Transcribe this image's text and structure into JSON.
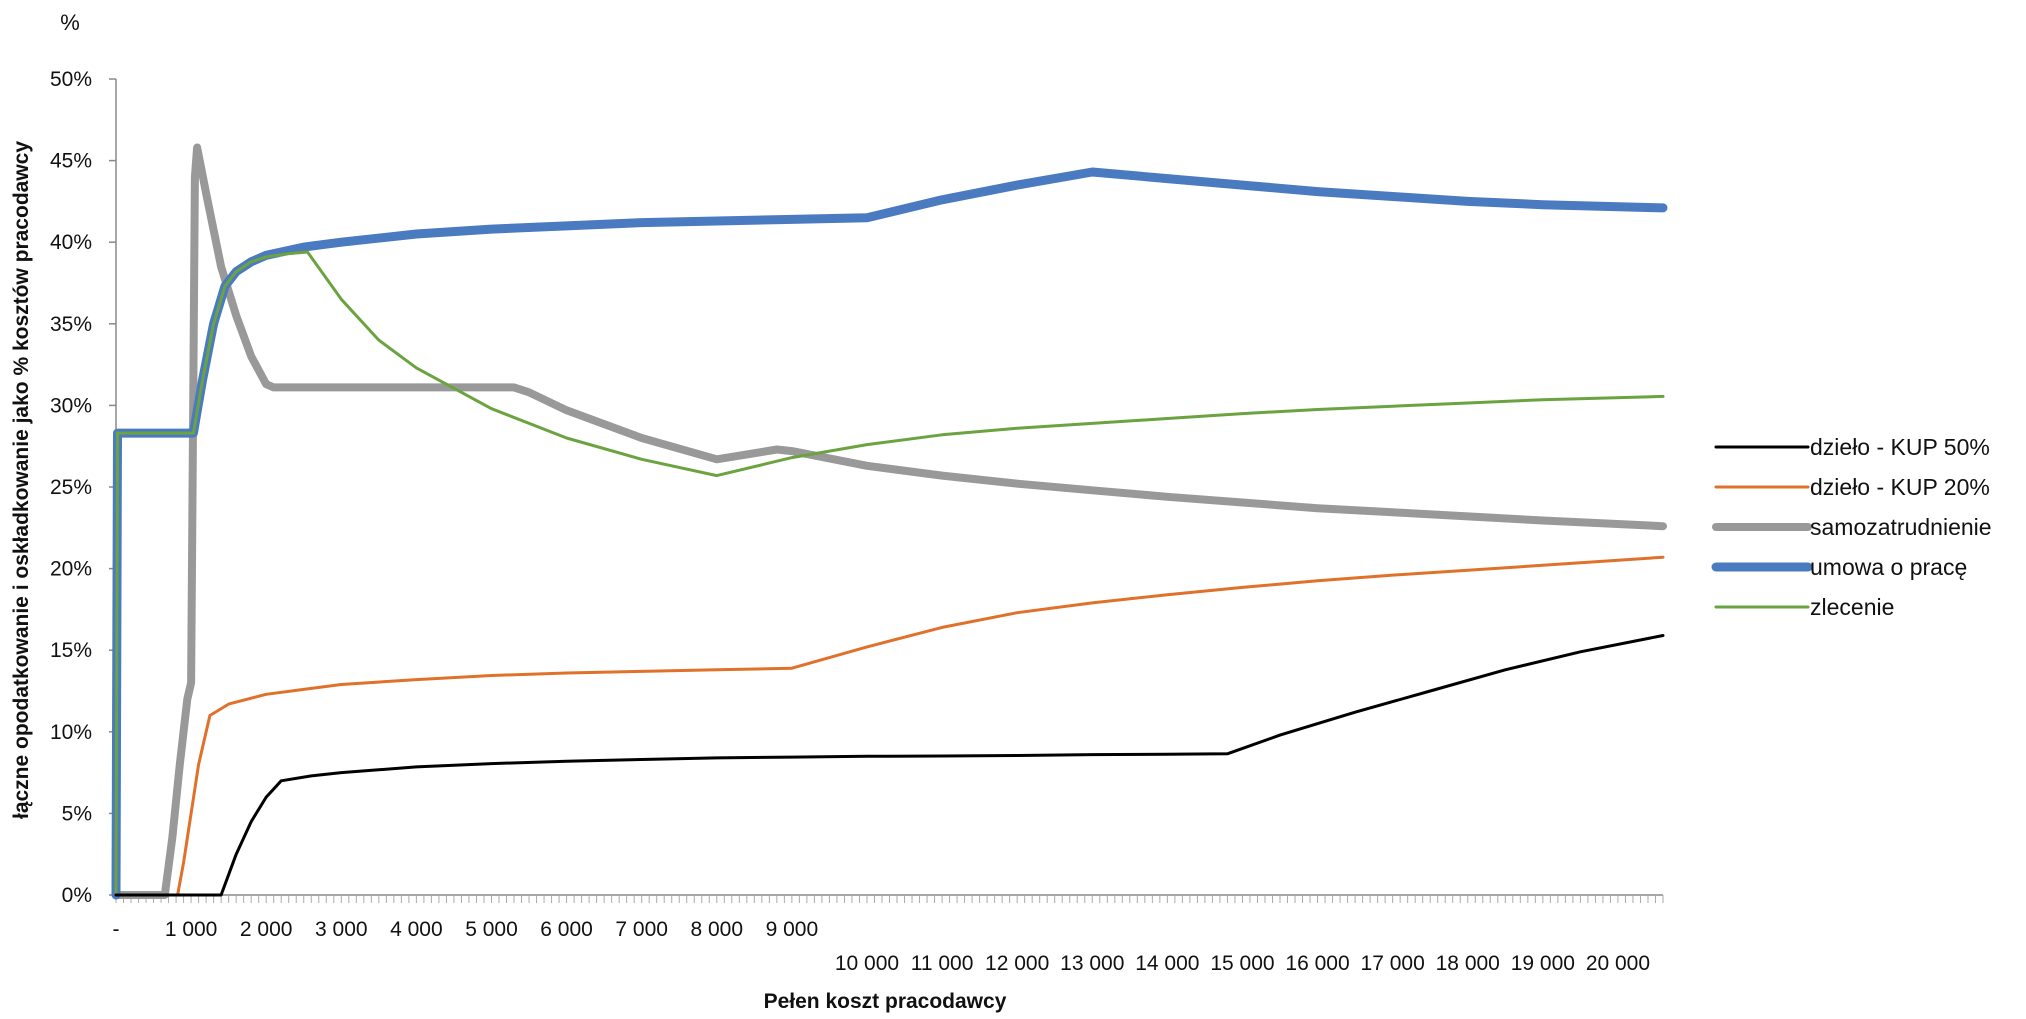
{
  "chart_data": {
    "type": "line",
    "unit_label": "%",
    "xlabel": "Pełen koszt pracodawcy",
    "ylabel": "łączne opodatkowanie i oskładkowanie jako % kosztów pracodawcy",
    "xlim": [
      0,
      20600
    ],
    "ylim": [
      0,
      50
    ],
    "y_ticks": [
      {
        "value": 0,
        "label": "0%"
      },
      {
        "value": 5,
        "label": "5%"
      },
      {
        "value": 10,
        "label": "10%"
      },
      {
        "value": 15,
        "label": "15%"
      },
      {
        "value": 20,
        "label": "20%"
      },
      {
        "value": 25,
        "label": "25%"
      },
      {
        "value": 30,
        "label": "30%"
      },
      {
        "value": 35,
        "label": "35%"
      },
      {
        "value": 40,
        "label": "40%"
      },
      {
        "value": 45,
        "label": "45%"
      },
      {
        "value": 50,
        "label": "50%"
      }
    ],
    "x_ticks": [
      {
        "value": 0,
        "label": "-",
        "row": 1
      },
      {
        "value": 1000,
        "label": "1 000",
        "row": 1
      },
      {
        "value": 2000,
        "label": "2 000",
        "row": 1
      },
      {
        "value": 3000,
        "label": "3 000",
        "row": 1
      },
      {
        "value": 4000,
        "label": "4 000",
        "row": 1
      },
      {
        "value": 5000,
        "label": "5 000",
        "row": 1
      },
      {
        "value": 6000,
        "label": "6 000",
        "row": 1
      },
      {
        "value": 7000,
        "label": "7 000",
        "row": 1
      },
      {
        "value": 8000,
        "label": "8 000",
        "row": 1
      },
      {
        "value": 9000,
        "label": "9 000",
        "row": 1
      },
      {
        "value": 10000,
        "label": "10 000",
        "row": 2
      },
      {
        "value": 11000,
        "label": "11 000",
        "row": 2
      },
      {
        "value": 12000,
        "label": "12 000",
        "row": 2
      },
      {
        "value": 13000,
        "label": "13 000",
        "row": 2
      },
      {
        "value": 14000,
        "label": "14 000",
        "row": 2
      },
      {
        "value": 15000,
        "label": "15 000",
        "row": 2
      },
      {
        "value": 16000,
        "label": "16 000",
        "row": 2
      },
      {
        "value": 17000,
        "label": "17 000",
        "row": 2
      },
      {
        "value": 18000,
        "label": "18 000",
        "row": 2
      },
      {
        "value": 19000,
        "label": "19 000",
        "row": 2
      },
      {
        "value": 20000,
        "label": "20 000",
        "row": 2
      }
    ],
    "grid": false,
    "legend_position": "right",
    "series": [
      {
        "name": "dzieło - KUP 50%",
        "color": "#000000",
        "line_weight": "thin",
        "points": [
          [
            0,
            0
          ],
          [
            1300,
            0
          ],
          [
            1400,
            0
          ],
          [
            1600,
            2.5
          ],
          [
            1800,
            4.5
          ],
          [
            2000,
            6
          ],
          [
            2200,
            7
          ],
          [
            2600,
            7.3
          ],
          [
            3000,
            7.5
          ],
          [
            4000,
            7.85
          ],
          [
            5000,
            8.05
          ],
          [
            6000,
            8.2
          ],
          [
            7000,
            8.3
          ],
          [
            8000,
            8.4
          ],
          [
            9000,
            8.45
          ],
          [
            10000,
            8.5
          ],
          [
            11000,
            8.52
          ],
          [
            12000,
            8.55
          ],
          [
            13000,
            8.6
          ],
          [
            14000,
            8.63
          ],
          [
            14800,
            8.65
          ],
          [
            15500,
            9.8
          ],
          [
            16500,
            11.2
          ],
          [
            17500,
            12.5
          ],
          [
            18500,
            13.8
          ],
          [
            19500,
            14.9
          ],
          [
            20600,
            15.9
          ]
        ]
      },
      {
        "name": "dzieło - KUP 20%",
        "color": "#e0712b",
        "line_weight": "thin",
        "points": [
          [
            0,
            0
          ],
          [
            800,
            0
          ],
          [
            820,
            0
          ],
          [
            900,
            2
          ],
          [
            1000,
            5
          ],
          [
            1100,
            8
          ],
          [
            1250,
            11
          ],
          [
            1500,
            11.7
          ],
          [
            2000,
            12.3
          ],
          [
            2500,
            12.6
          ],
          [
            3000,
            12.9
          ],
          [
            4000,
            13.2
          ],
          [
            5000,
            13.45
          ],
          [
            6000,
            13.6
          ],
          [
            7000,
            13.7
          ],
          [
            8000,
            13.8
          ],
          [
            9000,
            13.9
          ],
          [
            10000,
            15.2
          ],
          [
            11000,
            16.4
          ],
          [
            12000,
            17.3
          ],
          [
            13000,
            17.9
          ],
          [
            14000,
            18.4
          ],
          [
            15000,
            18.85
          ],
          [
            16000,
            19.25
          ],
          [
            17000,
            19.6
          ],
          [
            18000,
            19.9
          ],
          [
            19000,
            20.2
          ],
          [
            20600,
            20.7
          ]
        ]
      },
      {
        "name": "samozatrudnienie",
        "color": "#999999",
        "line_weight": "thick",
        "points": [
          [
            0,
            0
          ],
          [
            600,
            0
          ],
          [
            650,
            0
          ],
          [
            750,
            3.5
          ],
          [
            850,
            8
          ],
          [
            950,
            12
          ],
          [
            1000,
            13
          ],
          [
            1050,
            44
          ],
          [
            1080,
            45.8
          ],
          [
            1200,
            43
          ],
          [
            1400,
            38.5
          ],
          [
            1600,
            35.5
          ],
          [
            1800,
            33
          ],
          [
            2000,
            31.3
          ],
          [
            2100,
            31.1
          ],
          [
            3000,
            31.1
          ],
          [
            4000,
            31.1
          ],
          [
            5300,
            31.1
          ],
          [
            5500,
            30.8
          ],
          [
            6000,
            29.7
          ],
          [
            7000,
            28
          ],
          [
            8000,
            26.7
          ],
          [
            8800,
            27.3
          ],
          [
            9000,
            27.2
          ],
          [
            10000,
            26.3
          ],
          [
            11000,
            25.7
          ],
          [
            12000,
            25.2
          ],
          [
            13000,
            24.8
          ],
          [
            14000,
            24.4
          ],
          [
            15000,
            24.05
          ],
          [
            16000,
            23.7
          ],
          [
            17000,
            23.45
          ],
          [
            18000,
            23.2
          ],
          [
            19000,
            22.95
          ],
          [
            20600,
            22.6
          ]
        ]
      },
      {
        "name": "umowa o pracę",
        "color": "#4a7ac0",
        "line_weight": "thickest",
        "points": [
          [
            0,
            0
          ],
          [
            20,
            28.3
          ],
          [
            1000,
            28.3
          ],
          [
            1030,
            28.3
          ],
          [
            1150,
            31.5
          ],
          [
            1300,
            35
          ],
          [
            1450,
            37.3
          ],
          [
            1600,
            38.2
          ],
          [
            1800,
            38.8
          ],
          [
            2000,
            39.2
          ],
          [
            2500,
            39.7
          ],
          [
            3000,
            40
          ],
          [
            4000,
            40.5
          ],
          [
            5000,
            40.8
          ],
          [
            6000,
            41
          ],
          [
            7000,
            41.2
          ],
          [
            8000,
            41.3
          ],
          [
            9000,
            41.4
          ],
          [
            10000,
            41.5
          ],
          [
            11000,
            42.6
          ],
          [
            12000,
            43.5
          ],
          [
            13000,
            44.3
          ],
          [
            14000,
            43.9
          ],
          [
            15000,
            43.5
          ],
          [
            16000,
            43.1
          ],
          [
            17000,
            42.8
          ],
          [
            18000,
            42.5
          ],
          [
            19000,
            42.3
          ],
          [
            20600,
            42.1
          ]
        ]
      },
      {
        "name": "zlecenie",
        "color": "#6aa340",
        "line_weight": "thin",
        "points": [
          [
            0,
            0
          ],
          [
            20,
            28.3
          ],
          [
            1000,
            28.3
          ],
          [
            1030,
            28.3
          ],
          [
            1150,
            31.5
          ],
          [
            1300,
            35
          ],
          [
            1450,
            37.3
          ],
          [
            1600,
            38.2
          ],
          [
            1800,
            38.8
          ],
          [
            2000,
            39.1
          ],
          [
            2300,
            39.3
          ],
          [
            2550,
            39.4
          ],
          [
            3000,
            36.5
          ],
          [
            3500,
            34
          ],
          [
            4000,
            32.3
          ],
          [
            5000,
            29.8
          ],
          [
            6000,
            28
          ],
          [
            7000,
            26.7
          ],
          [
            8000,
            25.7
          ],
          [
            9000,
            26.8
          ],
          [
            10000,
            27.6
          ],
          [
            11000,
            28.2
          ],
          [
            12000,
            28.6
          ],
          [
            13000,
            28.9
          ],
          [
            14000,
            29.2
          ],
          [
            15000,
            29.5
          ],
          [
            16000,
            29.75
          ],
          [
            17000,
            29.95
          ],
          [
            18000,
            30.15
          ],
          [
            19000,
            30.35
          ],
          [
            20600,
            30.55
          ]
        ]
      }
    ]
  }
}
